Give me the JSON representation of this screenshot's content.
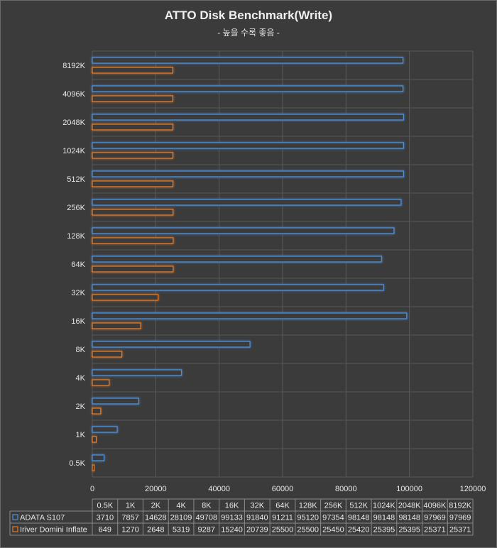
{
  "chart_data": {
    "type": "bar",
    "orientation": "horizontal",
    "title": "ATTO Disk Benchmark(Write)",
    "subtitle": "- 높을 수록 좋음 -",
    "categories": [
      "0.5K",
      "1K",
      "2K",
      "4K",
      "8K",
      "16K",
      "32K",
      "64K",
      "128K",
      "256K",
      "512K",
      "1024K",
      "2048K",
      "4096K",
      "8192K"
    ],
    "series": [
      {
        "name": "ADATA S107",
        "color": "#4f8fd6",
        "values": [
          3710,
          7857,
          14628,
          28109,
          49708,
          99133,
          91840,
          91211,
          95120,
          97354,
          98148,
          98148,
          98148,
          97969,
          97969
        ]
      },
      {
        "name": "Iriver Domini Inflate",
        "color": "#e07a2a",
        "values": [
          649,
          1270,
          2648,
          5319,
          9287,
          15240,
          20739,
          25500,
          25500,
          25450,
          25420,
          25395,
          25395,
          25371,
          25371
        ]
      }
    ],
    "xlim": [
      0,
      120000
    ],
    "xticks": [
      "0",
      "20000",
      "40000",
      "60000",
      "80000",
      "100000",
      "120000"
    ],
    "grid": true,
    "data_table": true
  }
}
